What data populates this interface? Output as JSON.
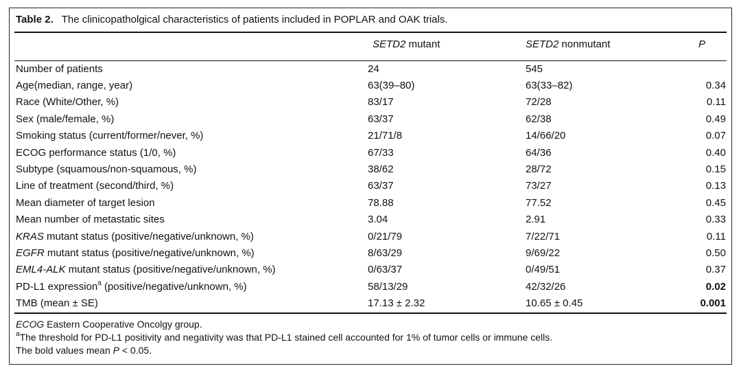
{
  "caption": {
    "label": "Table 2.",
    "text": "The clinicopatholgical characteristics of patients included in POPLAR and OAK trials."
  },
  "headers": {
    "col1_gene": "SETD2",
    "col1_rest": " mutant",
    "col2_gene": "SETD2",
    "col2_rest": " nonmutant",
    "col3": "P"
  },
  "rows": [
    {
      "pre": "Number of patients",
      "mutant": "24",
      "nonmutant": "545",
      "p": ""
    },
    {
      "pre": "Age(median, range, year)",
      "mutant": "63(39–80)",
      "nonmutant": "63(33–82)",
      "p": "0.34"
    },
    {
      "pre": "Race (White/Other, %)",
      "mutant": "83/17",
      "nonmutant": "72/28",
      "p": "0.11"
    },
    {
      "pre": "Sex (male/female, %)",
      "mutant": "63/37",
      "nonmutant": "62/38",
      "p": "0.49"
    },
    {
      "pre": "Smoking status (current/former/never, %)",
      "mutant": "21/71/8",
      "nonmutant": "14/66/20",
      "p": "0.07"
    },
    {
      "pre": "ECOG performance status (1/0, %)",
      "mutant": "67/33",
      "nonmutant": "64/36",
      "p": "0.40"
    },
    {
      "pre": "Subtype (squamous/non-squamous, %)",
      "mutant": "38/62",
      "nonmutant": "28/72",
      "p": "0.15"
    },
    {
      "pre": "Line of treatment (second/third, %)",
      "mutant": "63/37",
      "nonmutant": "73/27",
      "p": "0.13"
    },
    {
      "pre": "Mean diameter of target lesion",
      "mutant": "78.88",
      "nonmutant": "77.52",
      "p": "0.45"
    },
    {
      "pre": "Mean number of metastatic sites",
      "mutant": "3.04",
      "nonmutant": "2.91",
      "p": "0.33"
    },
    {
      "italic": "KRAS",
      "post": " mutant status (positive/negative/unknown, %)",
      "mutant": "0/21/79",
      "nonmutant": "7/22/71",
      "p": "0.11"
    },
    {
      "italic": "EGFR",
      "post": " mutant status (positive/negative/unknown, %)",
      "mutant": "8/63/29",
      "nonmutant": "9/69/22",
      "p": "0.50"
    },
    {
      "italic": "EML4-ALK",
      "post": " mutant status (positive/negative/unknown, %)",
      "mutant": "0/63/37",
      "nonmutant": "0/49/51",
      "p": "0.37"
    },
    {
      "pre": "PD-L1 expression",
      "sup": "a",
      "post": " (positive/negative/unknown, %)",
      "mutant": "58/13/29",
      "nonmutant": "42/32/26",
      "p": "0.02",
      "p_bold": true
    },
    {
      "pre": "TMB (mean ± SE)",
      "mutant": "17.13 ± 2.32",
      "nonmutant": "10.65 ± 0.45",
      "p": "0.001",
      "p_bold": true
    }
  ],
  "footnotes": {
    "ecog_abbr": "ECOG",
    "ecog_text": " Eastern Cooperative Oncolgy group.",
    "threshold_mark": "a",
    "threshold_text": "The threshold for PD-L1 positivity and negativity was that PD-L1 stained cell accounted for 1% of tumor cells or immune cells.",
    "bold_pre": "The bold values mean ",
    "bold_p": "P",
    "bold_post": " < 0.05."
  }
}
